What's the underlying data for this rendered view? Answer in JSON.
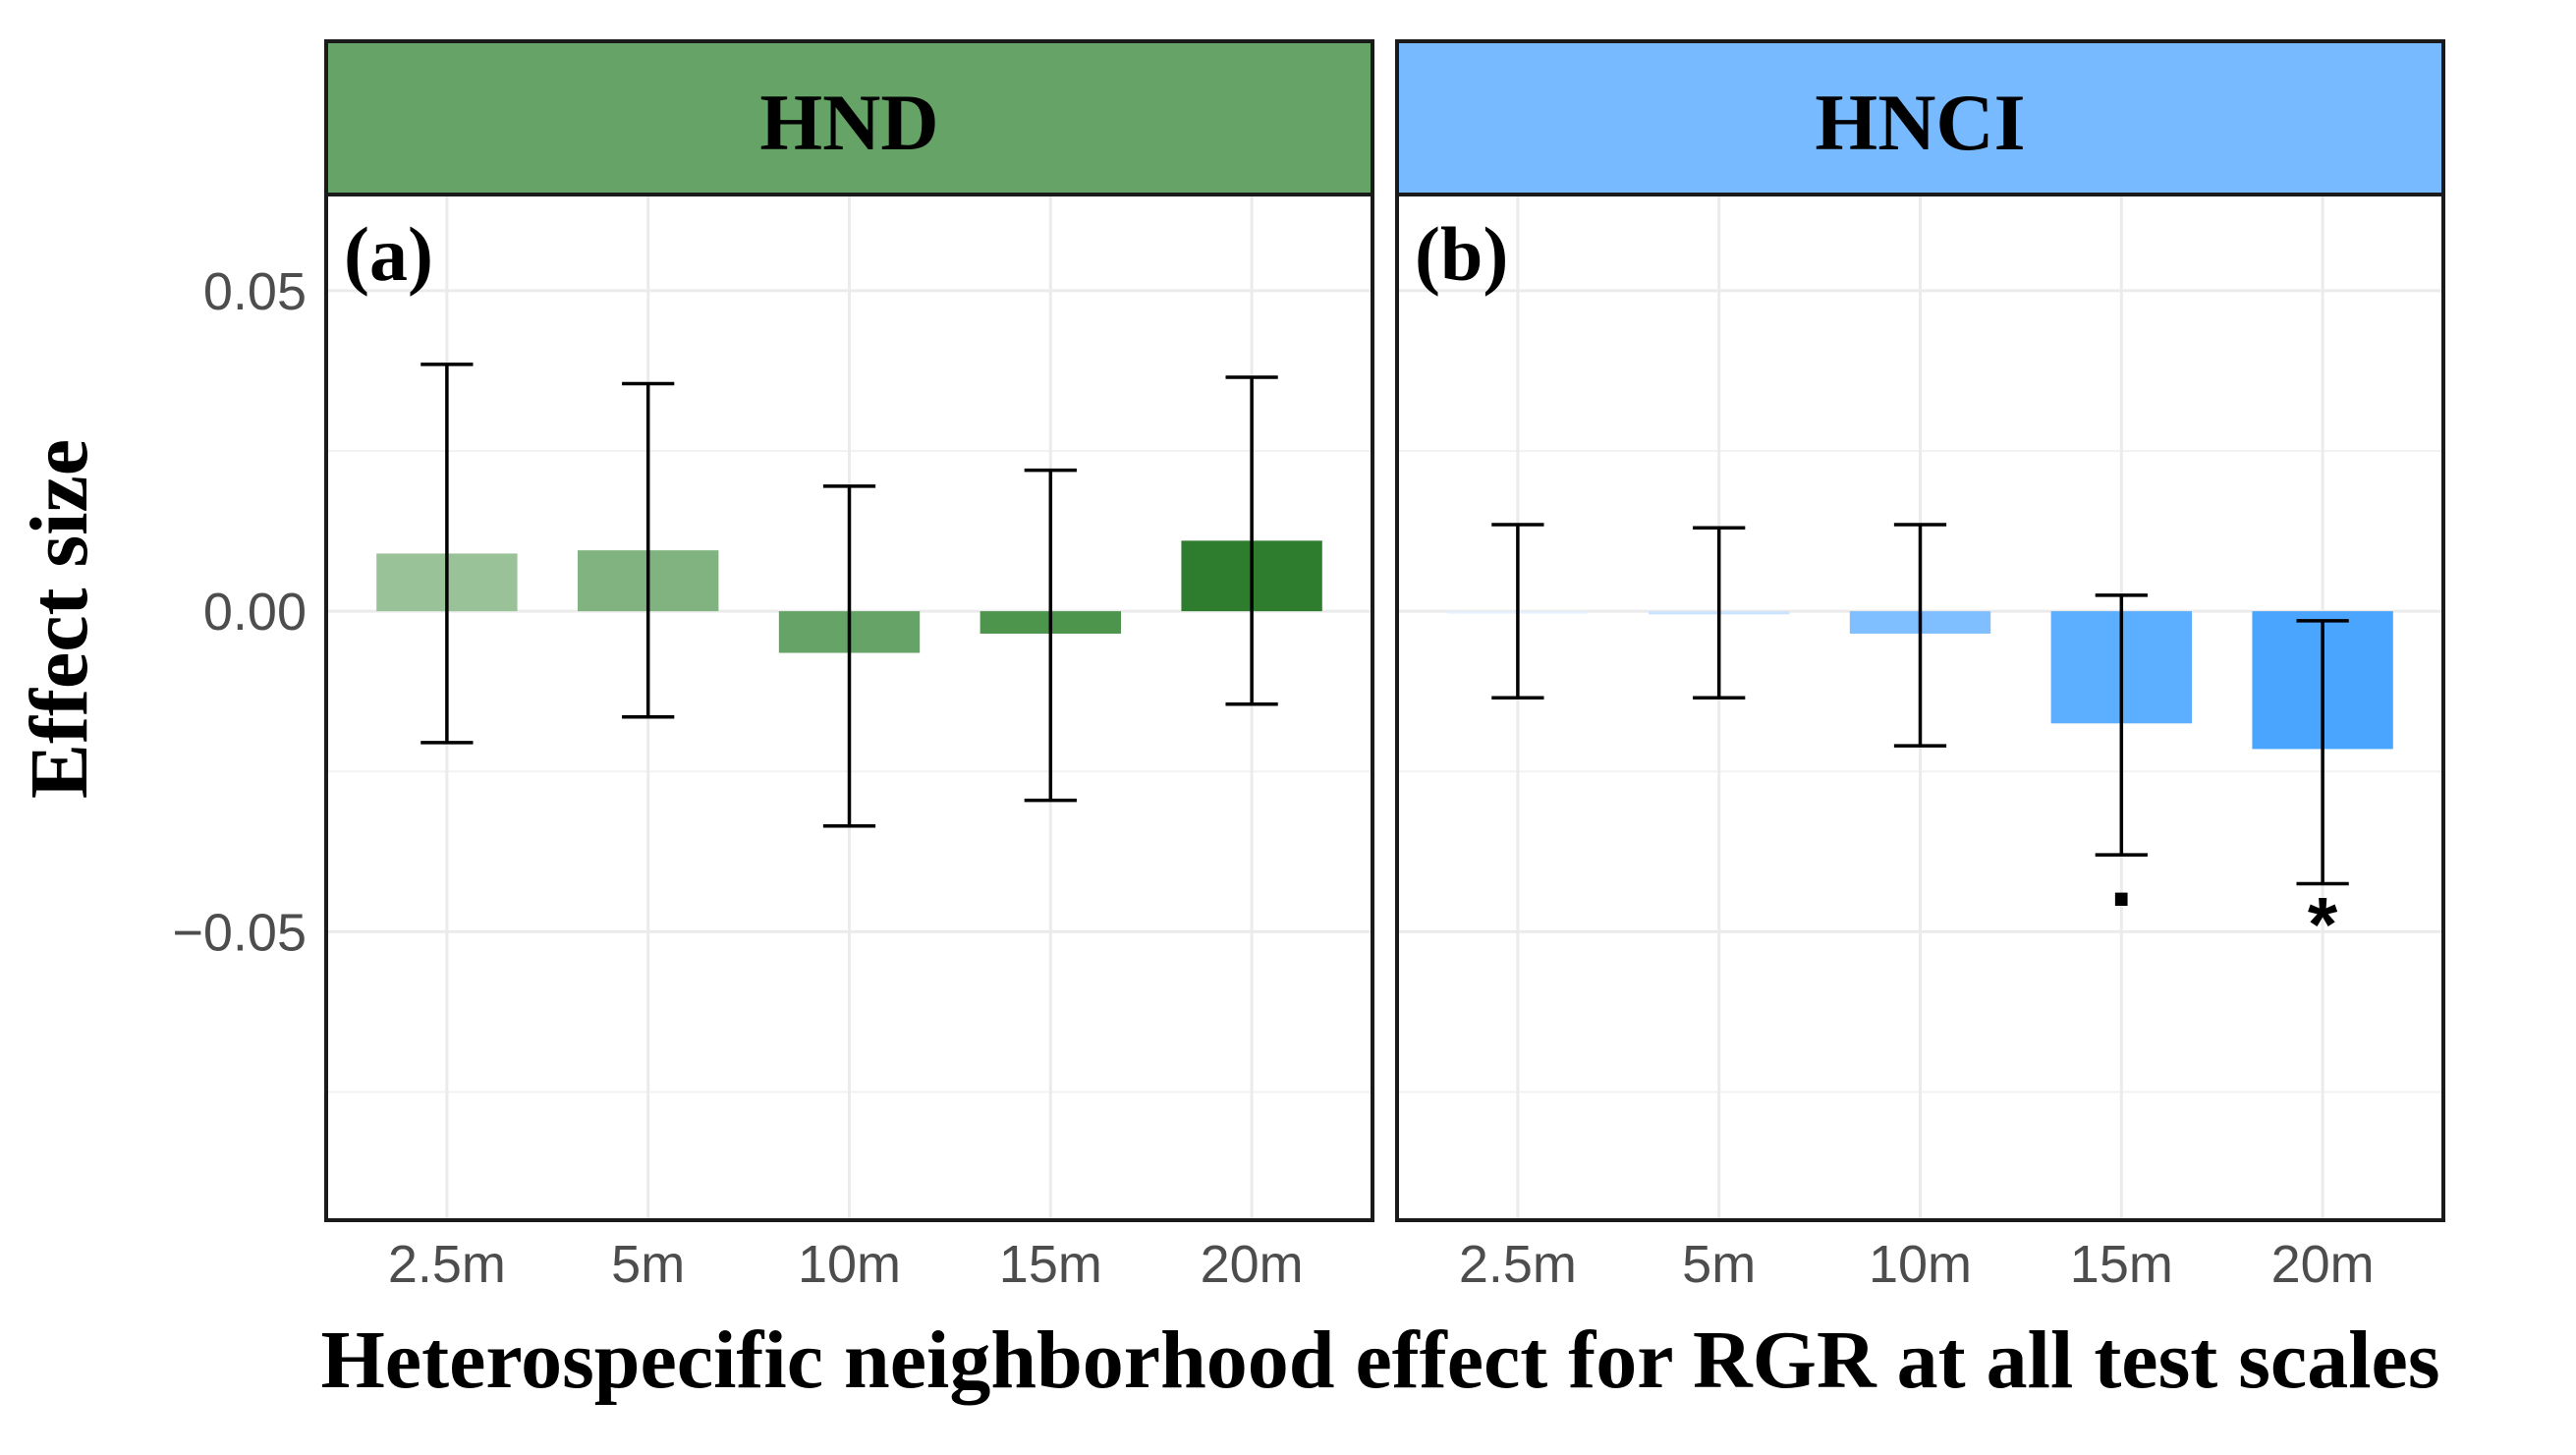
{
  "chart_data": {
    "type": "bar",
    "categories": [
      "2.5m",
      "5m",
      "10m",
      "15m",
      "20m"
    ],
    "ylim": [
      -0.095,
      0.065
    ],
    "yticks": [
      -0.05,
      0.0,
      0.05
    ],
    "ytick_labels": [
      "−0.05",
      "0.00",
      "0.05"
    ],
    "ylabel": "Effect size",
    "xlabel": "Heterospecific neighborhood effect  for RGR at all test scales",
    "panels": [
      {
        "strip": "HND",
        "tag": "(a)",
        "strip_color": "#66a366",
        "values": [
          0.009,
          0.0095,
          -0.0065,
          -0.0035,
          0.011
        ],
        "ci_low": [
          -0.0205,
          -0.0165,
          -0.0335,
          -0.0295,
          -0.0145
        ],
        "ci_high": [
          0.0385,
          0.0355,
          0.0195,
          0.022,
          0.0365
        ],
        "bar_colors": [
          "#99c299",
          "#80b380",
          "#66a366",
          "#4d944d",
          "#2e7d2e"
        ],
        "significance": [
          "",
          "",
          "",
          "",
          ""
        ]
      },
      {
        "strip": "HNCI",
        "tag": "(b)",
        "strip_color": "#78baff",
        "values": [
          0.0,
          -0.0005,
          -0.0035,
          -0.0175,
          -0.0215
        ],
        "ci_low": [
          -0.0135,
          -0.0135,
          -0.021,
          -0.038,
          -0.0425
        ],
        "ci_high": [
          0.0135,
          0.013,
          0.0135,
          0.0025,
          -0.0015
        ],
        "bar_colors": [
          "#e6f1ff",
          "#cce3ff",
          "#80bfff",
          "#5caeff",
          "#4aa5ff"
        ],
        "significance": [
          "",
          "",
          "",
          ".",
          "*"
        ]
      }
    ]
  }
}
